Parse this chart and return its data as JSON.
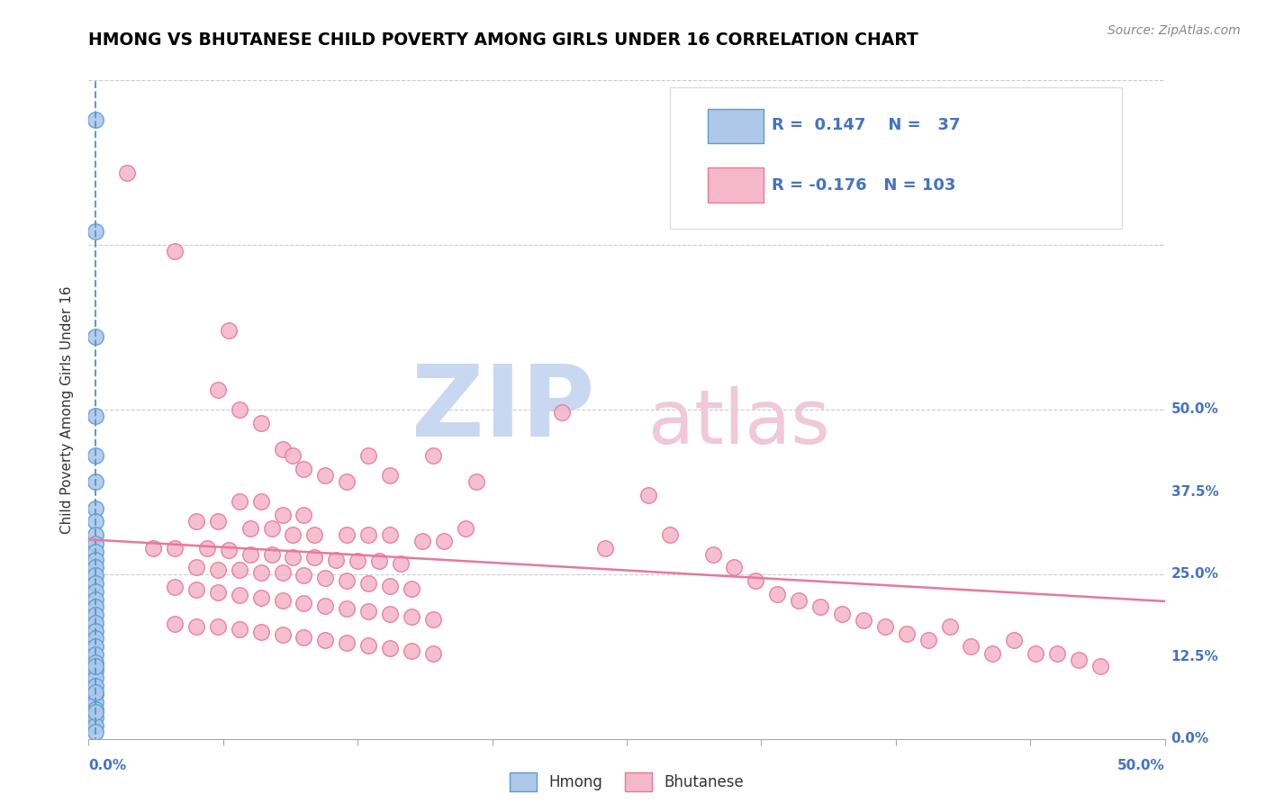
{
  "title": "HMONG VS BHUTANESE CHILD POVERTY AMONG GIRLS UNDER 16 CORRELATION CHART",
  "source": "Source: ZipAtlas.com",
  "ylabel": "Child Poverty Among Girls Under 16",
  "ytick_labels": [
    "0.0%",
    "12.5%",
    "25.0%",
    "37.5%",
    "50.0%"
  ],
  "ytick_values": [
    0.0,
    0.125,
    0.25,
    0.375,
    0.5
  ],
  "xlim": [
    0,
    0.5
  ],
  "ylim": [
    0,
    0.5
  ],
  "hmong_color": "#adc8e8",
  "bhutanese_color": "#f5b8cb",
  "hmong_edge_color": "#5b9bd5",
  "bhutanese_edge_color": "#e8789a",
  "hmong_line_color": "#5b9bd5",
  "bhutanese_line_color": "#e8789a",
  "legend_text_color": "#4472c4",
  "r_hmong": 0.147,
  "n_hmong": 37,
  "r_bhutanese": -0.176,
  "n_bhutanese": 103,
  "hmong_scatter": [
    [
      0.003,
      0.47
    ],
    [
      0.003,
      0.385
    ],
    [
      0.003,
      0.305
    ],
    [
      0.003,
      0.245
    ],
    [
      0.003,
      0.215
    ],
    [
      0.003,
      0.195
    ],
    [
      0.003,
      0.175
    ],
    [
      0.003,
      0.165
    ],
    [
      0.003,
      0.155
    ],
    [
      0.003,
      0.148
    ],
    [
      0.003,
      0.142
    ],
    [
      0.003,
      0.136
    ],
    [
      0.003,
      0.13
    ],
    [
      0.003,
      0.124
    ],
    [
      0.003,
      0.118
    ],
    [
      0.003,
      0.112
    ],
    [
      0.003,
      0.106
    ],
    [
      0.003,
      0.1
    ],
    [
      0.003,
      0.094
    ],
    [
      0.003,
      0.088
    ],
    [
      0.003,
      0.082
    ],
    [
      0.003,
      0.076
    ],
    [
      0.003,
      0.07
    ],
    [
      0.003,
      0.064
    ],
    [
      0.003,
      0.058
    ],
    [
      0.003,
      0.052
    ],
    [
      0.003,
      0.046
    ],
    [
      0.003,
      0.04
    ],
    [
      0.003,
      0.034
    ],
    [
      0.003,
      0.028
    ],
    [
      0.003,
      0.022
    ],
    [
      0.003,
      0.016
    ],
    [
      0.003,
      0.01
    ],
    [
      0.003,
      0.005
    ],
    [
      0.003,
      0.055
    ],
    [
      0.003,
      0.035
    ],
    [
      0.003,
      0.02
    ]
  ],
  "bhutanese_scatter": [
    [
      0.018,
      0.43
    ],
    [
      0.04,
      0.37
    ],
    [
      0.06,
      0.265
    ],
    [
      0.065,
      0.31
    ],
    [
      0.07,
      0.25
    ],
    [
      0.08,
      0.24
    ],
    [
      0.09,
      0.22
    ],
    [
      0.095,
      0.215
    ],
    [
      0.1,
      0.205
    ],
    [
      0.11,
      0.2
    ],
    [
      0.12,
      0.195
    ],
    [
      0.13,
      0.215
    ],
    [
      0.14,
      0.2
    ],
    [
      0.16,
      0.215
    ],
    [
      0.18,
      0.195
    ],
    [
      0.07,
      0.18
    ],
    [
      0.08,
      0.18
    ],
    [
      0.09,
      0.17
    ],
    [
      0.1,
      0.17
    ],
    [
      0.05,
      0.165
    ],
    [
      0.06,
      0.165
    ],
    [
      0.075,
      0.16
    ],
    [
      0.085,
      0.16
    ],
    [
      0.095,
      0.155
    ],
    [
      0.105,
      0.155
    ],
    [
      0.12,
      0.155
    ],
    [
      0.13,
      0.155
    ],
    [
      0.14,
      0.155
    ],
    [
      0.155,
      0.15
    ],
    [
      0.165,
      0.15
    ],
    [
      0.175,
      0.16
    ],
    [
      0.03,
      0.145
    ],
    [
      0.04,
      0.145
    ],
    [
      0.055,
      0.145
    ],
    [
      0.065,
      0.143
    ],
    [
      0.075,
      0.14
    ],
    [
      0.085,
      0.14
    ],
    [
      0.095,
      0.138
    ],
    [
      0.105,
      0.138
    ],
    [
      0.115,
      0.136
    ],
    [
      0.125,
      0.135
    ],
    [
      0.135,
      0.135
    ],
    [
      0.145,
      0.133
    ],
    [
      0.05,
      0.13
    ],
    [
      0.06,
      0.128
    ],
    [
      0.07,
      0.128
    ],
    [
      0.08,
      0.126
    ],
    [
      0.09,
      0.126
    ],
    [
      0.1,
      0.124
    ],
    [
      0.11,
      0.122
    ],
    [
      0.12,
      0.12
    ],
    [
      0.13,
      0.118
    ],
    [
      0.14,
      0.116
    ],
    [
      0.15,
      0.114
    ],
    [
      0.04,
      0.115
    ],
    [
      0.05,
      0.113
    ],
    [
      0.06,
      0.111
    ],
    [
      0.07,
      0.109
    ],
    [
      0.08,
      0.107
    ],
    [
      0.09,
      0.105
    ],
    [
      0.1,
      0.103
    ],
    [
      0.11,
      0.101
    ],
    [
      0.12,
      0.099
    ],
    [
      0.13,
      0.097
    ],
    [
      0.14,
      0.095
    ],
    [
      0.15,
      0.093
    ],
    [
      0.16,
      0.091
    ],
    [
      0.04,
      0.087
    ],
    [
      0.05,
      0.085
    ],
    [
      0.06,
      0.085
    ],
    [
      0.07,
      0.083
    ],
    [
      0.08,
      0.081
    ],
    [
      0.09,
      0.079
    ],
    [
      0.1,
      0.077
    ],
    [
      0.11,
      0.075
    ],
    [
      0.12,
      0.073
    ],
    [
      0.13,
      0.071
    ],
    [
      0.14,
      0.069
    ],
    [
      0.15,
      0.067
    ],
    [
      0.16,
      0.065
    ],
    [
      0.22,
      0.248
    ],
    [
      0.24,
      0.145
    ],
    [
      0.26,
      0.185
    ],
    [
      0.27,
      0.155
    ],
    [
      0.29,
      0.14
    ],
    [
      0.3,
      0.13
    ],
    [
      0.31,
      0.12
    ],
    [
      0.32,
      0.11
    ],
    [
      0.33,
      0.105
    ],
    [
      0.34,
      0.1
    ],
    [
      0.35,
      0.095
    ],
    [
      0.36,
      0.09
    ],
    [
      0.37,
      0.085
    ],
    [
      0.38,
      0.08
    ],
    [
      0.39,
      0.075
    ],
    [
      0.4,
      0.085
    ],
    [
      0.41,
      0.07
    ],
    [
      0.42,
      0.065
    ],
    [
      0.43,
      0.075
    ],
    [
      0.44,
      0.065
    ],
    [
      0.45,
      0.065
    ],
    [
      0.46,
      0.06
    ],
    [
      0.47,
      0.055
    ]
  ]
}
